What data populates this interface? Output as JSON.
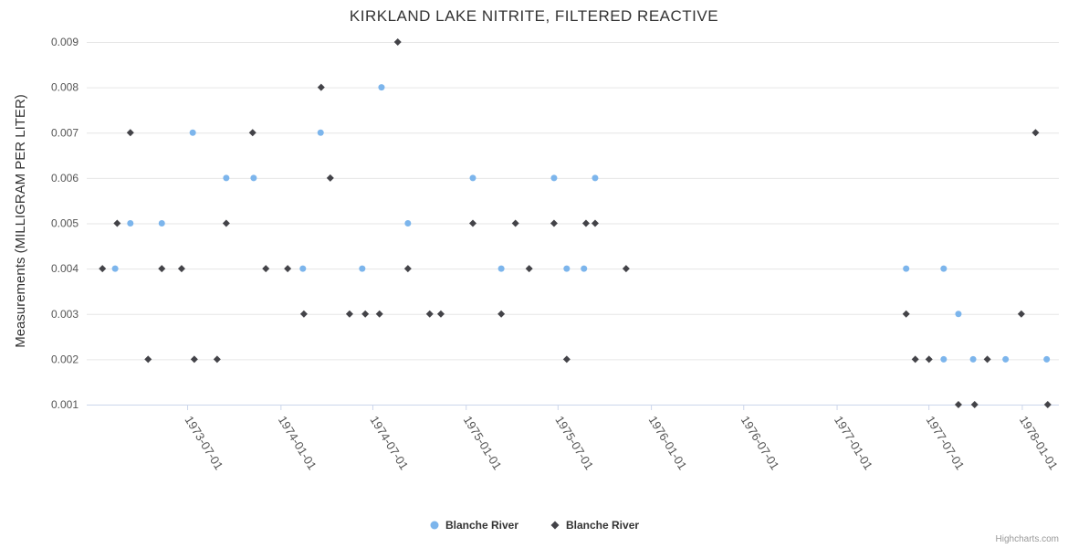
{
  "credit": "Highcharts.com",
  "chart_data": {
    "type": "scatter",
    "title": "KIRKLAND LAKE NITRITE, FILTERED REACTIVE",
    "ylabel": "Measurements (MILLIGRAM PER LITER)",
    "xlabel": "",
    "grid": "horizontal",
    "legend_position": "bottom-center",
    "x_min": "1972-12-15",
    "x_max": "1978-03-15",
    "ylim": [
      0.001,
      0.009
    ],
    "yticks": [
      0.001,
      0.002,
      0.003,
      0.004,
      0.005,
      0.006,
      0.007,
      0.008,
      0.009
    ],
    "ytick_labels": [
      "0.001",
      "0.002",
      "0.003",
      "0.004",
      "0.005",
      "0.006",
      "0.007",
      "0.008",
      "0.009"
    ],
    "xticks": [
      "1973-07-01",
      "1974-01-01",
      "1974-07-01",
      "1975-01-01",
      "1975-07-01",
      "1976-01-01",
      "1976-07-01",
      "1977-01-01",
      "1977-07-01",
      "1978-01-01"
    ],
    "series": [
      {
        "name": "Blanche River",
        "marker": "circle",
        "color": "#7cb5ec",
        "points": [
          [
            "1973-02-09",
            0.004
          ],
          [
            "1973-03-11",
            0.005
          ],
          [
            "1973-05-12",
            0.005
          ],
          [
            "1973-07-12",
            0.007
          ],
          [
            "1973-09-16",
            0.006
          ],
          [
            "1973-11-09",
            0.006
          ],
          [
            "1974-02-14",
            0.004
          ],
          [
            "1974-03-21",
            0.007
          ],
          [
            "1974-06-11",
            0.004
          ],
          [
            "1974-07-19",
            0.008
          ],
          [
            "1974-09-09",
            0.005
          ],
          [
            "1975-01-15",
            0.006
          ],
          [
            "1975-03-12",
            0.004
          ],
          [
            "1975-06-24",
            0.006
          ],
          [
            "1975-07-19",
            0.004
          ],
          [
            "1975-08-22",
            0.004
          ],
          [
            "1975-09-13",
            0.006
          ],
          [
            "1977-05-18",
            0.004
          ],
          [
            "1977-07-31",
            0.004
          ],
          [
            "1977-07-31",
            0.002
          ],
          [
            "1977-08-29",
            0.003
          ],
          [
            "1977-09-27",
            0.002
          ],
          [
            "1977-11-30",
            0.002
          ],
          [
            "1978-02-19",
            0.002
          ]
        ]
      },
      {
        "name": "Blanche River",
        "marker": "diamond",
        "color": "#434348",
        "points": [
          [
            "1973-01-15",
            0.004
          ],
          [
            "1973-02-13",
            0.005
          ],
          [
            "1973-03-11",
            0.007
          ],
          [
            "1973-04-15",
            0.002
          ],
          [
            "1973-05-12",
            0.004
          ],
          [
            "1973-06-20",
            0.004
          ],
          [
            "1973-07-15",
            0.002
          ],
          [
            "1973-08-29",
            0.002
          ],
          [
            "1973-09-16",
            0.005
          ],
          [
            "1973-11-07",
            0.007
          ],
          [
            "1973-12-03",
            0.004
          ],
          [
            "1974-01-15",
            0.004
          ],
          [
            "1974-02-16",
            0.003
          ],
          [
            "1974-03-22",
            0.008
          ],
          [
            "1974-04-09",
            0.006
          ],
          [
            "1974-05-17",
            0.003
          ],
          [
            "1974-06-17",
            0.003
          ],
          [
            "1974-07-15",
            0.003
          ],
          [
            "1974-08-20",
            0.009
          ],
          [
            "1974-09-09",
            0.004
          ],
          [
            "1974-10-22",
            0.003
          ],
          [
            "1974-11-13",
            0.003
          ],
          [
            "1975-01-15",
            0.005
          ],
          [
            "1975-03-12",
            0.003
          ],
          [
            "1975-04-09",
            0.005
          ],
          [
            "1975-05-06",
            0.004
          ],
          [
            "1975-06-24",
            0.005
          ],
          [
            "1975-07-19",
            0.002
          ],
          [
            "1975-08-26",
            0.005
          ],
          [
            "1975-09-13",
            0.005
          ],
          [
            "1975-11-13",
            0.004
          ],
          [
            "1977-05-18",
            0.003
          ],
          [
            "1977-06-05",
            0.002
          ],
          [
            "1977-07-02",
            0.002
          ],
          [
            "1977-08-29",
            0.001
          ],
          [
            "1977-09-30",
            0.001
          ],
          [
            "1977-10-25",
            0.002
          ],
          [
            "1977-12-31",
            0.003
          ],
          [
            "1978-01-28",
            0.007
          ],
          [
            "1978-02-21",
            0.001
          ]
        ]
      }
    ]
  }
}
